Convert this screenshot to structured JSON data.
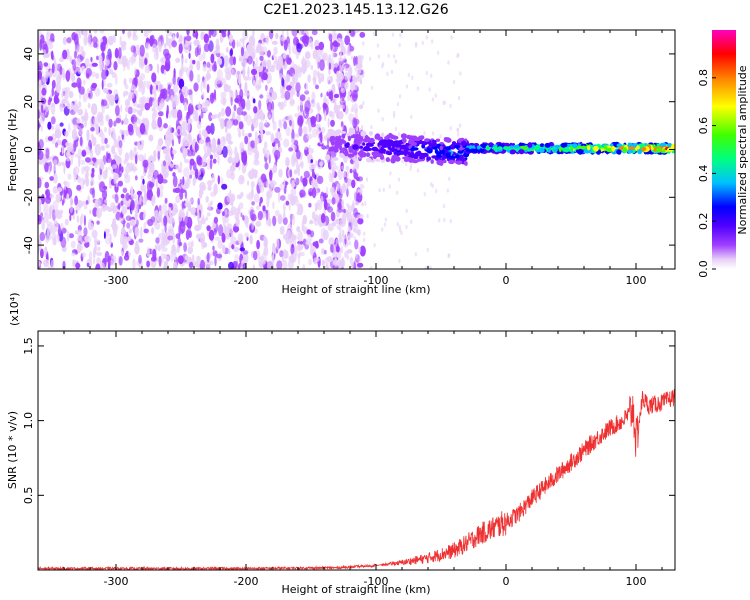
{
  "title": "C2E1.2023.145.13.12.G26",
  "chart_data": [
    {
      "type": "heatmap",
      "xlabel": "Height of straight line (km)",
      "ylabel": "Frequency (Hz)",
      "xlim": [
        -360,
        130
      ],
      "ylim": [
        -50,
        50
      ],
      "x_ticks": [
        -300,
        -200,
        -100,
        0,
        100
      ],
      "y_ticks": [
        -40,
        -20,
        0,
        20,
        40
      ],
      "colorbar": {
        "label": "Normalized spectral amplitude",
        "range": [
          0.0,
          1.0
        ],
        "ticks": [
          "0.0",
          "0.2",
          "0.4",
          "0.6",
          "0.8"
        ],
        "colors": [
          "#ffffff",
          "#e8d0f8",
          "#a040ff",
          "#5000ff",
          "#0000ff",
          "#00c0ff",
          "#00ff80",
          "#40ff00",
          "#ffff00",
          "#ff8000",
          "#ff0000",
          "#ff00c0"
        ]
      },
      "features": {
        "noise_region_x": [
          -360,
          -130
        ],
        "signal_ridge_x": [
          -135,
          130
        ],
        "signal_ridge_freq": 0,
        "signal_ridge_max_amplitude": 1.0
      }
    },
    {
      "type": "line",
      "xlabel": "Height of straight line (km)",
      "ylabel": "SNR (10 * v/v)",
      "scale_label": "(x10⁴)",
      "xlim": [
        -360,
        130
      ],
      "ylim": [
        0,
        1.6
      ],
      "x_ticks": [
        -300,
        -200,
        -100,
        0,
        100
      ],
      "y_ticks": [
        0.5,
        1.0,
        1.5
      ],
      "y_tick_labels": [
        "0.5",
        "1.0",
        "1.5"
      ],
      "series": [
        {
          "color": "#ee3030",
          "x": [
            -360,
            -300,
            -200,
            -130,
            -100,
            -80,
            -60,
            -40,
            -30,
            -20,
            -10,
            0,
            10,
            20,
            30,
            40,
            50,
            60,
            70,
            80,
            90,
            98,
            100,
            105,
            110,
            120,
            130
          ],
          "y": [
            0.01,
            0.01,
            0.01,
            0.015,
            0.03,
            0.05,
            0.08,
            0.13,
            0.18,
            0.24,
            0.28,
            0.32,
            0.38,
            0.48,
            0.56,
            0.64,
            0.72,
            0.8,
            0.88,
            0.95,
            1.0,
            1.08,
            0.85,
            1.15,
            1.1,
            1.12,
            1.16
          ]
        }
      ]
    }
  ]
}
